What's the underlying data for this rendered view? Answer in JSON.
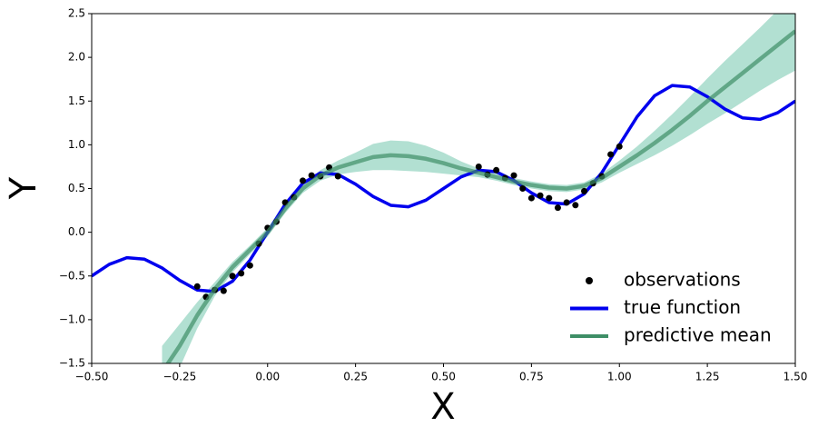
{
  "chart_data": {
    "type": "line",
    "xlabel": "X",
    "ylabel": "Y",
    "xlim": [
      -0.5,
      1.5
    ],
    "ylim": [
      -1.5,
      2.5
    ],
    "xticks": [
      {
        "value": -0.5,
        "label": "−0.50"
      },
      {
        "value": -0.25,
        "label": "−0.25"
      },
      {
        "value": 0,
        "label": "0.00"
      },
      {
        "value": 0.25,
        "label": "0.25"
      },
      {
        "value": 0.5,
        "label": "0.50"
      },
      {
        "value": 0.75,
        "label": "0.75"
      },
      {
        "value": 1,
        "label": "1.00"
      },
      {
        "value": 1.25,
        "label": "1.25"
      },
      {
        "value": 1.5,
        "label": "1.50"
      }
    ],
    "yticks": [
      {
        "value": -1.5,
        "label": "−1.5"
      },
      {
        "value": -1,
        "label": "−1.0"
      },
      {
        "value": -0.5,
        "label": "−0.5"
      },
      {
        "value": 0,
        "label": "0.0"
      },
      {
        "value": 0.5,
        "label": "0.5"
      },
      {
        "value": 1,
        "label": "1.0"
      },
      {
        "value": 1.5,
        "label": "1.5"
      },
      {
        "value": 2,
        "label": "2.0"
      },
      {
        "value": 2.5,
        "label": "2.5"
      }
    ],
    "legend": "lower right",
    "series": [
      {
        "name": "observations",
        "kind": "scatter",
        "color": "#000000",
        "x": [
          -0.2,
          -0.175,
          -0.15,
          -0.125,
          -0.1,
          -0.075,
          -0.05,
          -0.025,
          0,
          0.025,
          0.05,
          0.075,
          0.1,
          0.125,
          0.15,
          0.175,
          0.2,
          0.6,
          0.625,
          0.65,
          0.675,
          0.7,
          0.725,
          0.75,
          0.775,
          0.8,
          0.825,
          0.85,
          0.875,
          0.9,
          0.925,
          0.95,
          0.975,
          1.0
        ],
        "values": [
          -0.62,
          -0.74,
          -0.66,
          -0.67,
          -0.5,
          -0.47,
          -0.38,
          -0.13,
          0.05,
          0.12,
          0.34,
          0.4,
          0.59,
          0.65,
          0.64,
          0.74,
          0.64,
          0.75,
          0.66,
          0.71,
          0.62,
          0.65,
          0.5,
          0.39,
          0.42,
          0.39,
          0.28,
          0.34,
          0.31,
          0.47,
          0.56,
          0.64,
          0.89,
          0.98
        ]
      },
      {
        "name": "true function",
        "kind": "line",
        "color": "#0000ee",
        "x": [
          -0.5,
          -0.45,
          -0.4,
          -0.35,
          -0.3,
          -0.25,
          -0.2,
          -0.15,
          -0.1,
          -0.05,
          0,
          0.05,
          0.1,
          0.15,
          0.2,
          0.25,
          0.3,
          0.35,
          0.4,
          0.45,
          0.5,
          0.55,
          0.6,
          0.65,
          0.7,
          0.75,
          0.8,
          0.85,
          0.9,
          0.95,
          1.0,
          1.05,
          1.1,
          1.15,
          1.2,
          1.25,
          1.3,
          1.35,
          1.4,
          1.45,
          1.5
        ],
        "values": [
          -0.5,
          -0.367,
          -0.291,
          -0.308,
          -0.409,
          -0.55,
          -0.661,
          -0.678,
          -0.561,
          -0.319,
          0,
          0.319,
          0.561,
          0.678,
          0.661,
          0.55,
          0.409,
          0.308,
          0.291,
          0.367,
          0.5,
          0.633,
          0.709,
          0.692,
          0.591,
          0.45,
          0.339,
          0.322,
          0.439,
          0.681,
          1.0,
          1.319,
          1.561,
          1.678,
          1.661,
          1.55,
          1.409,
          1.308,
          1.291,
          1.367,
          1.5
        ]
      },
      {
        "name": "predictive mean",
        "kind": "line",
        "color": "#3e8e66",
        "x": [
          -0.3,
          -0.25,
          -0.2,
          -0.15,
          -0.1,
          -0.05,
          0,
          0.05,
          0.1,
          0.15,
          0.2,
          0.25,
          0.3,
          0.35,
          0.4,
          0.45,
          0.5,
          0.55,
          0.6,
          0.65,
          0.7,
          0.75,
          0.8,
          0.85,
          0.9,
          0.95,
          1.0,
          1.05,
          1.1,
          1.15,
          1.2,
          1.25,
          1.3,
          1.35,
          1.4,
          1.45,
          1.5
        ],
        "values": [
          -1.6,
          -1.3,
          -0.95,
          -0.65,
          -0.4,
          -0.2,
          0.0,
          0.27,
          0.5,
          0.65,
          0.74,
          0.8,
          0.86,
          0.88,
          0.87,
          0.84,
          0.79,
          0.73,
          0.68,
          0.63,
          0.58,
          0.54,
          0.51,
          0.5,
          0.53,
          0.62,
          0.75,
          0.88,
          1.02,
          1.17,
          1.33,
          1.5,
          1.66,
          1.82,
          1.98,
          2.14,
          2.3
        ]
      }
    ],
    "band": {
      "color": "#66c2a5",
      "lower": [
        -1.9,
        -1.55,
        -1.1,
        -0.73,
        -0.46,
        -0.25,
        -0.05,
        0.22,
        0.45,
        0.59,
        0.66,
        0.69,
        0.71,
        0.71,
        0.7,
        0.69,
        0.67,
        0.65,
        0.63,
        0.59,
        0.54,
        0.5,
        0.47,
        0.46,
        0.49,
        0.57,
        0.68,
        0.78,
        0.88,
        0.99,
        1.11,
        1.24,
        1.36,
        1.49,
        1.62,
        1.74,
        1.85
      ],
      "upper": [
        -1.3,
        -1.05,
        -0.8,
        -0.57,
        -0.34,
        -0.15,
        0.05,
        0.32,
        0.55,
        0.71,
        0.82,
        0.91,
        1.01,
        1.05,
        1.04,
        0.99,
        0.91,
        0.81,
        0.73,
        0.67,
        0.62,
        0.58,
        0.55,
        0.54,
        0.57,
        0.67,
        0.82,
        0.98,
        1.16,
        1.35,
        1.55,
        1.76,
        1.96,
        2.15,
        2.34,
        2.54,
        2.75
      ]
    }
  }
}
